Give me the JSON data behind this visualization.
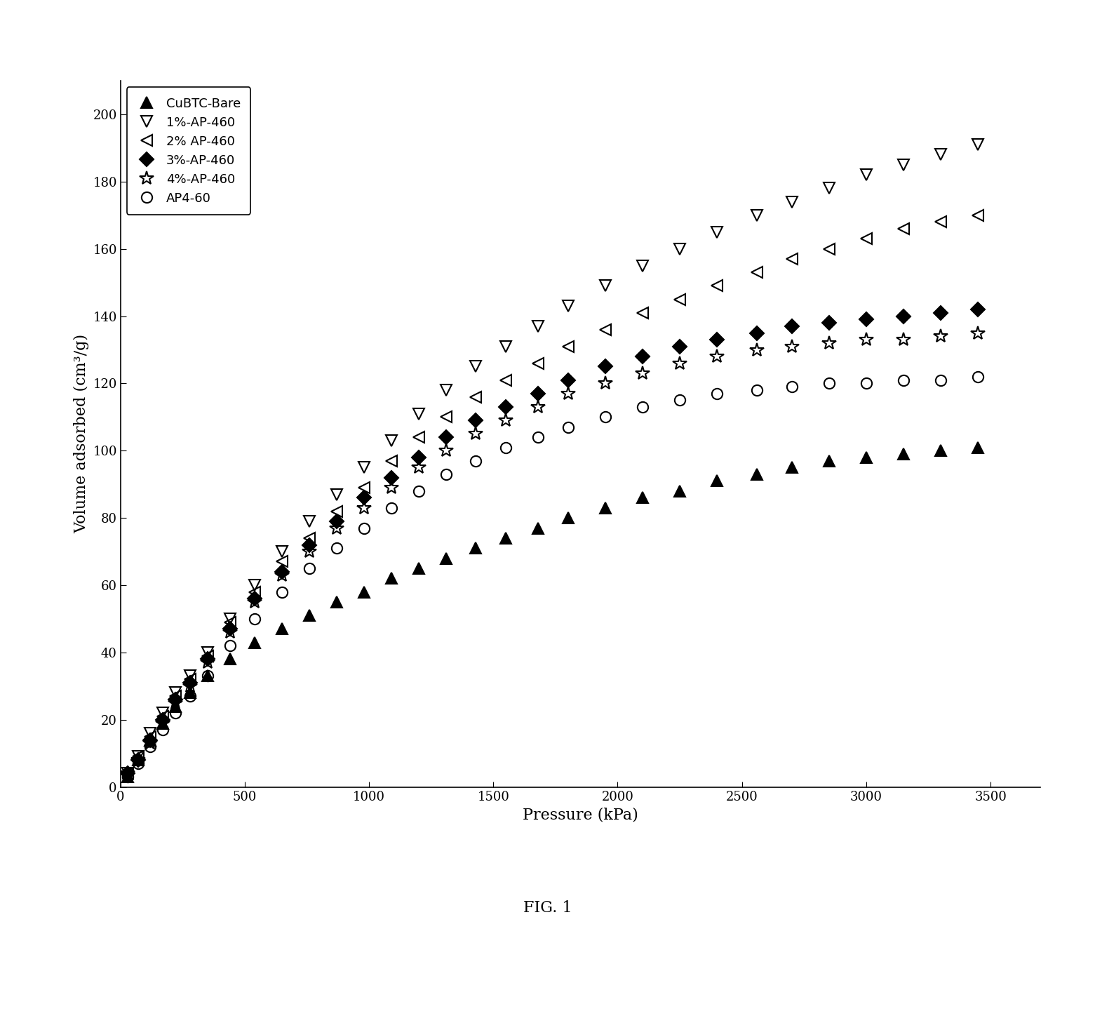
{
  "xlabel": "Pressure (kPa)",
  "ylabel": "Volume adsorbed (cm³/g)",
  "xlim": [
    0,
    3700
  ],
  "ylim": [
    0,
    210
  ],
  "xticks": [
    0,
    500,
    1000,
    1500,
    2000,
    2500,
    3000,
    3500
  ],
  "yticks": [
    0,
    20,
    40,
    60,
    80,
    100,
    120,
    140,
    160,
    180,
    200
  ],
  "fig_caption": "FIG. 1",
  "series": [
    {
      "label": "CuBTC-Bare",
      "marker": "^",
      "fillstyle": "full",
      "color": "black",
      "x": [
        30,
        70,
        120,
        170,
        220,
        280,
        350,
        440,
        540,
        650,
        760,
        870,
        980,
        1090,
        1200,
        1310,
        1430,
        1550,
        1680,
        1800,
        1950,
        2100,
        2250,
        2400,
        2560,
        2700,
        2850,
        3000,
        3150,
        3300,
        3450
      ],
      "y": [
        3,
        8,
        14,
        19,
        24,
        28,
        33,
        38,
        43,
        47,
        51,
        55,
        58,
        62,
        65,
        68,
        71,
        74,
        77,
        80,
        83,
        86,
        88,
        91,
        93,
        95,
        97,
        98,
        99,
        100,
        101
      ]
    },
    {
      "label": "1%-AP-460",
      "marker": "v",
      "fillstyle": "none",
      "color": "black",
      "x": [
        30,
        70,
        120,
        170,
        220,
        280,
        350,
        440,
        540,
        650,
        760,
        870,
        980,
        1090,
        1200,
        1310,
        1430,
        1550,
        1680,
        1800,
        1950,
        2100,
        2250,
        2400,
        2560,
        2700,
        2850,
        3000,
        3150,
        3300,
        3450
      ],
      "y": [
        4,
        9,
        16,
        22,
        28,
        33,
        40,
        50,
        60,
        70,
        79,
        87,
        95,
        103,
        111,
        118,
        125,
        131,
        137,
        143,
        149,
        155,
        160,
        165,
        170,
        174,
        178,
        182,
        185,
        188,
        191
      ]
    },
    {
      "label": "2% AP-460",
      "marker": "<",
      "fillstyle": "none",
      "color": "black",
      "x": [
        30,
        70,
        120,
        170,
        220,
        280,
        350,
        440,
        540,
        650,
        760,
        870,
        980,
        1090,
        1200,
        1310,
        1430,
        1550,
        1680,
        1800,
        1950,
        2100,
        2250,
        2400,
        2560,
        2700,
        2850,
        3000,
        3150,
        3300,
        3450
      ],
      "y": [
        4,
        9,
        15,
        21,
        27,
        32,
        39,
        49,
        58,
        67,
        74,
        82,
        89,
        97,
        104,
        110,
        116,
        121,
        126,
        131,
        136,
        141,
        145,
        149,
        153,
        157,
        160,
        163,
        166,
        168,
        170
      ]
    },
    {
      "label": "3%-AP-460",
      "marker": "D",
      "fillstyle": "full",
      "color": "black",
      "x": [
        30,
        70,
        120,
        170,
        220,
        280,
        350,
        440,
        540,
        650,
        760,
        870,
        980,
        1090,
        1200,
        1310,
        1430,
        1550,
        1680,
        1800,
        1950,
        2100,
        2250,
        2400,
        2560,
        2700,
        2850,
        3000,
        3150,
        3300,
        3450
      ],
      "y": [
        4,
        8,
        14,
        20,
        26,
        31,
        38,
        47,
        56,
        64,
        72,
        79,
        86,
        92,
        98,
        104,
        109,
        113,
        117,
        121,
        125,
        128,
        131,
        133,
        135,
        137,
        138,
        139,
        140,
        141,
        142
      ]
    },
    {
      "label": "4%-AP-460",
      "marker": "*",
      "fillstyle": "none",
      "color": "black",
      "x": [
        30,
        70,
        120,
        170,
        220,
        280,
        350,
        440,
        540,
        650,
        760,
        870,
        980,
        1090,
        1200,
        1310,
        1430,
        1550,
        1680,
        1800,
        1950,
        2100,
        2250,
        2400,
        2560,
        2700,
        2850,
        3000,
        3150,
        3300,
        3450
      ],
      "y": [
        4,
        8,
        13,
        19,
        25,
        30,
        37,
        46,
        55,
        63,
        70,
        77,
        83,
        89,
        95,
        100,
        105,
        109,
        113,
        117,
        120,
        123,
        126,
        128,
        130,
        131,
        132,
        133,
        133,
        134,
        135
      ]
    },
    {
      "label": "AP4-60",
      "marker": "o",
      "fillstyle": "none",
      "color": "black",
      "x": [
        30,
        70,
        120,
        170,
        220,
        280,
        350,
        440,
        540,
        650,
        760,
        870,
        980,
        1090,
        1200,
        1310,
        1430,
        1550,
        1680,
        1800,
        1950,
        2100,
        2250,
        2400,
        2560,
        2700,
        2850,
        3000,
        3150,
        3300,
        3450
      ],
      "y": [
        3,
        7,
        12,
        17,
        22,
        27,
        33,
        42,
        50,
        58,
        65,
        71,
        77,
        83,
        88,
        93,
        97,
        101,
        104,
        107,
        110,
        113,
        115,
        117,
        118,
        119,
        120,
        120,
        121,
        121,
        122
      ]
    }
  ]
}
